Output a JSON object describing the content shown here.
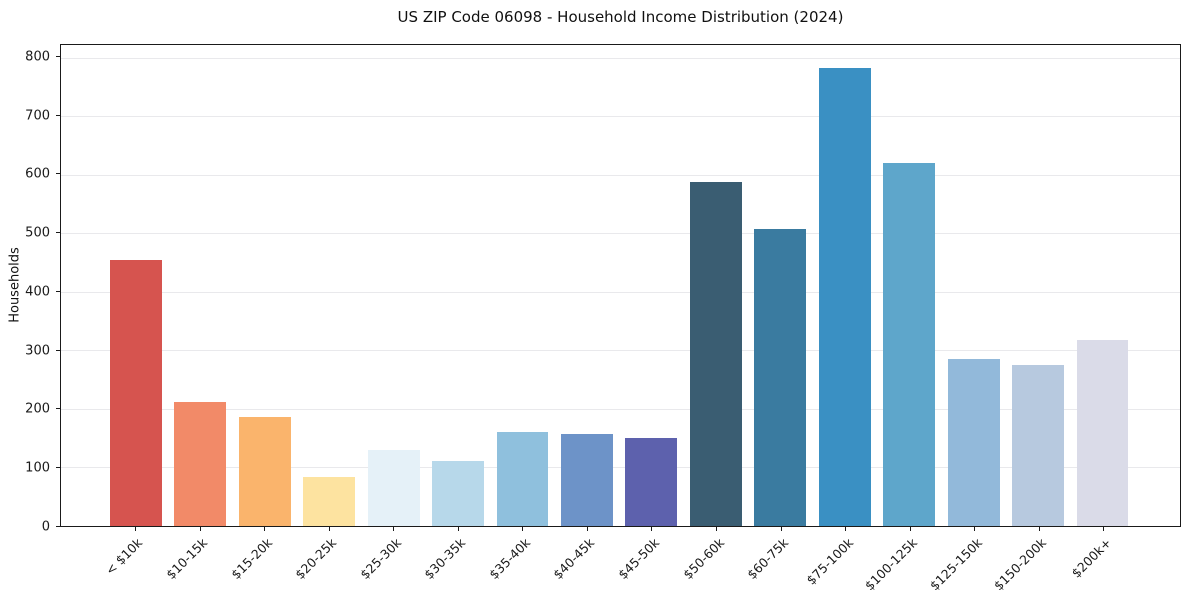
{
  "chart_data": {
    "type": "bar",
    "title": "US ZIP Code 06098 - Household Income Distribution (2024)",
    "xlabel": "",
    "ylabel": "Households",
    "categories": [
      "< $10k",
      "$10-15k",
      "$15-20k",
      "$20-25k",
      "$25-30k",
      "$30-35k",
      "$35-40k",
      "$40-45k",
      "$45-50k",
      "$50-60k",
      "$60-75k",
      "$75-100k",
      "$100-125k",
      "$125-150k",
      "$150-200k",
      "$200k+"
    ],
    "values": [
      455,
      212,
      186,
      84,
      130,
      111,
      161,
      158,
      151,
      588,
      508,
      783,
      621,
      286,
      275,
      318
    ],
    "bar_colors": [
      "#d6544f",
      "#f28a68",
      "#fab46c",
      "#fde3a0",
      "#e5f1f8",
      "#b7d8ea",
      "#8fc0dd",
      "#6d93c8",
      "#5d61ad",
      "#3a5d72",
      "#3a7ba0",
      "#3a90c3",
      "#5ea6cb",
      "#92b9da",
      "#b7c9df",
      "#dadbe8"
    ],
    "yticks": [
      0,
      100,
      200,
      300,
      400,
      500,
      600,
      700,
      800
    ],
    "ylim": [
      0,
      822
    ],
    "grid": "horizontal-only",
    "grid_color": "#e9e9ec",
    "axis_color": "#1a1a1a",
    "legend": "none",
    "background_color": "#ffffff"
  }
}
